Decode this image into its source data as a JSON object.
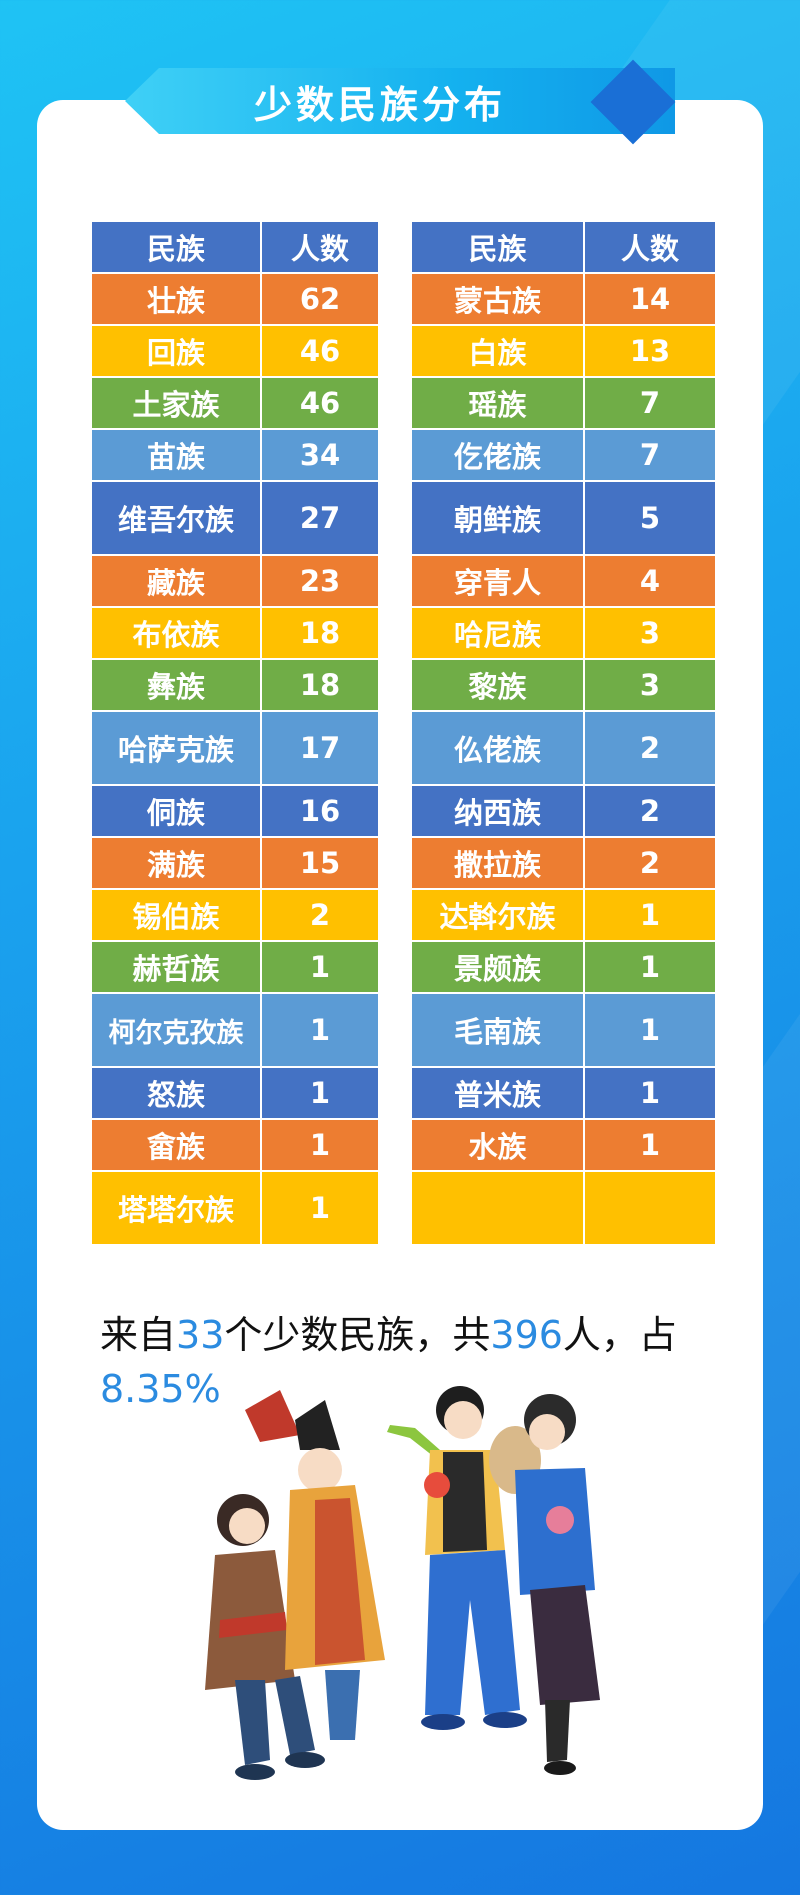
{
  "banner": {
    "title": "少数民族分布"
  },
  "colors": {
    "header": "#4472c4",
    "orange": "#ed7d31",
    "yellow": "#ffc000",
    "green": "#70ad47",
    "light_blue": "#5b9bd5",
    "dark_blue": "#4472c4",
    "highlight_text": "#2b8be0"
  },
  "tables": {
    "left": {
      "headers": [
        "民族",
        "人数"
      ],
      "rows": [
        {
          "name": "壮族",
          "count": "62",
          "color": "orange"
        },
        {
          "name": "回族",
          "count": "46",
          "color": "yellow"
        },
        {
          "name": "土家族",
          "count": "46",
          "color": "green"
        },
        {
          "name": "苗族",
          "count": "34",
          "color": "light_blue"
        },
        {
          "name": "维吾尔族",
          "count": "27",
          "color": "dark_blue"
        },
        {
          "name": "藏族",
          "count": "23",
          "color": "orange"
        },
        {
          "name": "布依族",
          "count": "18",
          "color": "yellow"
        },
        {
          "name": "彝族",
          "count": "18",
          "color": "green"
        },
        {
          "name": "哈萨克族",
          "count": "17",
          "color": "light_blue"
        },
        {
          "name": "侗族",
          "count": "16",
          "color": "dark_blue"
        },
        {
          "name": "满族",
          "count": "15",
          "color": "orange"
        },
        {
          "name": "锡伯族",
          "count": "2",
          "color": "yellow"
        },
        {
          "name": "赫哲族",
          "count": "1",
          "color": "green"
        },
        {
          "name": "柯尔克孜族",
          "count": "1",
          "color": "light_blue"
        },
        {
          "name": "怒族",
          "count": "1",
          "color": "dark_blue"
        },
        {
          "name": "畲族",
          "count": "1",
          "color": "orange"
        },
        {
          "name": "塔塔尔族",
          "count": "1",
          "color": "yellow"
        }
      ]
    },
    "right": {
      "headers": [
        "民族",
        "人数"
      ],
      "rows": [
        {
          "name": "蒙古族",
          "count": "14",
          "color": "orange"
        },
        {
          "name": "白族",
          "count": "13",
          "color": "yellow"
        },
        {
          "name": "瑶族",
          "count": "7",
          "color": "green"
        },
        {
          "name": "仡佬族",
          "count": "7",
          "color": "light_blue"
        },
        {
          "name": "朝鲜族",
          "count": "5",
          "color": "dark_blue"
        },
        {
          "name": "穿青人",
          "count": "4",
          "color": "orange"
        },
        {
          "name": "哈尼族",
          "count": "3",
          "color": "yellow"
        },
        {
          "name": "黎族",
          "count": "3",
          "color": "green"
        },
        {
          "name": "仫佬族",
          "count": "2",
          "color": "light_blue"
        },
        {
          "name": "纳西族",
          "count": "2",
          "color": "dark_blue"
        },
        {
          "name": "撒拉族",
          "count": "2",
          "color": "orange"
        },
        {
          "name": "达斡尔族",
          "count": "1",
          "color": "yellow"
        },
        {
          "name": "景颇族",
          "count": "1",
          "color": "green"
        },
        {
          "name": "毛南族",
          "count": "1",
          "color": "light_blue"
        },
        {
          "name": "普米族",
          "count": "1",
          "color": "dark_blue"
        },
        {
          "name": "水族",
          "count": "1",
          "color": "orange"
        },
        {
          "name": "",
          "count": "",
          "color": "yellow"
        }
      ]
    }
  },
  "summary": {
    "prefix": "来自",
    "groups": "33",
    "middle": "个少数民族，共",
    "people": "396",
    "suffix": "人，占",
    "percent": "8.35%"
  },
  "illustration": {
    "icon": "ethnic-dancers-illustration"
  }
}
